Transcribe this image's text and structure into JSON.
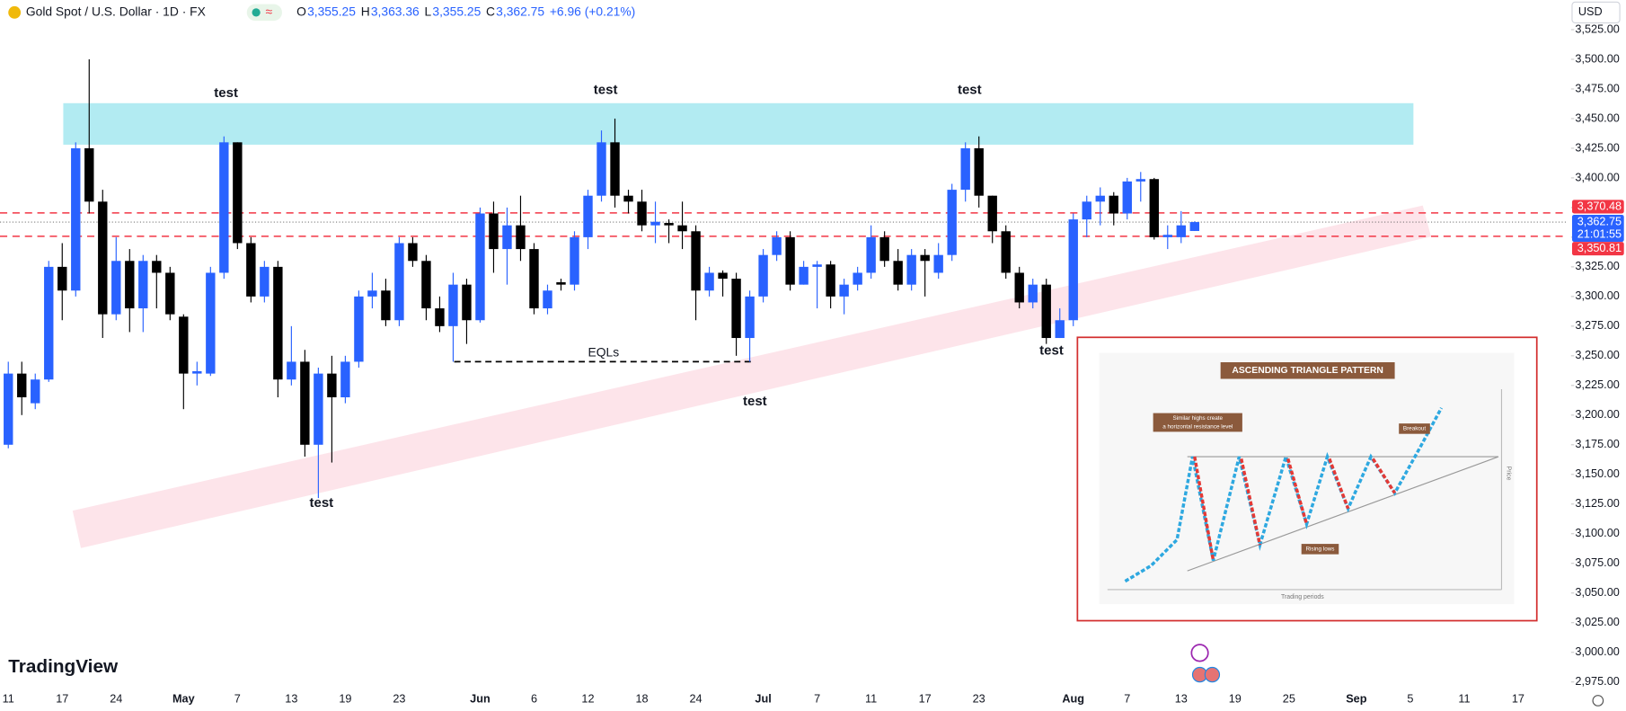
{
  "header": {
    "title": "Gold Spot / U.S. Dollar · 1D · FX",
    "ohlc": [
      {
        "letter": "O",
        "value": "3,355.25"
      },
      {
        "letter": "H",
        "value": "3,363.36"
      },
      {
        "letter": "L",
        "value": "3,355.25"
      },
      {
        "letter": "C",
        "value": "3,362.75"
      }
    ],
    "change": "+6.96 (+0.21%)"
  },
  "chart_data": {
    "type": "candlestick",
    "currency": "USD",
    "colors": {
      "up": "#2962ff",
      "down": "#000000"
    },
    "candles": {
      "open": [
        3175,
        3235,
        3210,
        3230,
        3325,
        3305,
        3425,
        3380,
        3285,
        3330,
        3290,
        3330,
        3320,
        3283,
        3235,
        3235,
        3320,
        3430,
        3345,
        3300,
        3325,
        3230,
        3245,
        3175,
        3235,
        3215,
        3245,
        3300,
        3305,
        3280,
        3345,
        3330,
        3290,
        3275,
        3310,
        3280,
        3370,
        3340,
        3360,
        3340,
        3290,
        3312,
        3310,
        3350,
        3385,
        3430,
        3385,
        3380,
        3360,
        3362,
        3360,
        3355,
        3305,
        3320,
        3315,
        3265,
        3300,
        3335,
        3350,
        3310,
        3325,
        3327,
        3300,
        3310,
        3320,
        3350,
        3330,
        3310,
        3335,
        3320,
        3335,
        3390,
        3425,
        3385,
        3355,
        3320,
        3295,
        3310,
        3265,
        3280,
        3365,
        3380,
        3385,
        3370,
        3397,
        3399,
        3350,
        3350,
        3355.25
      ],
      "high": [
        3245,
        3245,
        3235,
        3330,
        3345,
        3430,
        3500,
        3390,
        3350,
        3340,
        3335,
        3335,
        3325,
        3285,
        3245,
        3325,
        3435,
        3430,
        3350,
        3330,
        3330,
        3275,
        3255,
        3240,
        3250,
        3250,
        3305,
        3320,
        3315,
        3350,
        3350,
        3335,
        3300,
        3320,
        3315,
        3375,
        3380,
        3375,
        3385,
        3345,
        3310,
        3315,
        3355,
        3390,
        3440,
        3450,
        3390,
        3390,
        3380,
        3365,
        3380,
        3360,
        3325,
        3322,
        3320,
        3305,
        3340,
        3355,
        3355,
        3330,
        3330,
        3330,
        3315,
        3325,
        3360,
        3355,
        3340,
        3340,
        3340,
        3345,
        3395,
        3430,
        3435,
        3385,
        3360,
        3325,
        3315,
        3315,
        3290,
        3370,
        3385,
        3392,
        3388,
        3400,
        3405,
        3400,
        3360,
        3372,
        3363.36
      ],
      "low": [
        3172,
        3200,
        3205,
        3228,
        3280,
        3300,
        3370,
        3265,
        3280,
        3270,
        3270,
        3290,
        3280,
        3205,
        3225,
        3233,
        3315,
        3340,
        3295,
        3295,
        3215,
        3225,
        3165,
        3130,
        3160,
        3210,
        3240,
        3290,
        3275,
        3275,
        3325,
        3280,
        3270,
        3245,
        3260,
        3278,
        3320,
        3310,
        3330,
        3285,
        3285,
        3305,
        3305,
        3340,
        3380,
        3375,
        3370,
        3355,
        3345,
        3345,
        3340,
        3280,
        3300,
        3300,
        3250,
        3245,
        3295,
        3330,
        3305,
        3310,
        3290,
        3290,
        3285,
        3305,
        3315,
        3325,
        3305,
        3305,
        3300,
        3315,
        3330,
        3380,
        3375,
        3345,
        3315,
        3290,
        3290,
        3260,
        3265,
        3275,
        3350,
        3360,
        3360,
        3365,
        3380,
        3348,
        3340,
        3345,
        3355.25
      ],
      "close": [
        3235,
        3215,
        3230,
        3325,
        3305,
        3425,
        3380,
        3285,
        3330,
        3290,
        3330,
        3320,
        3285,
        3235,
        3237,
        3320,
        3430,
        3345,
        3300,
        3325,
        3230,
        3245,
        3175,
        3235,
        3215,
        3245,
        3300,
        3305,
        3280,
        3345,
        3330,
        3290,
        3275,
        3310,
        3280,
        3370,
        3340,
        3360,
        3340,
        3290,
        3305,
        3310,
        3350,
        3385,
        3430,
        3385,
        3380,
        3360,
        3363,
        3360,
        3355,
        3305,
        3320,
        3315,
        3265,
        3300,
        3335,
        3350,
        3310,
        3325,
        3327,
        3300,
        3310,
        3320,
        3350,
        3330,
        3310,
        3335,
        3330,
        3335,
        3390,
        3425,
        3385,
        3355,
        3320,
        3295,
        3310,
        3265,
        3280,
        3365,
        3380,
        3385,
        3370,
        3397,
        3399,
        3350,
        3352,
        3360,
        3362.75
      ]
    },
    "ylim": [
      2968,
      3550
    ],
    "yticks": [
      {
        "value": 3525,
        "label": "3,525.00"
      },
      {
        "value": 3500,
        "label": "3,500.00"
      },
      {
        "value": 3475,
        "label": "3,475.00"
      },
      {
        "value": 3450,
        "label": "3,450.00"
      },
      {
        "value": 3425,
        "label": "3,425.00"
      },
      {
        "value": 3400,
        "label": "3,400.00"
      },
      {
        "value": 3375,
        "label": "3,375.00"
      },
      {
        "value": 3350,
        "label": "3,350.00"
      },
      {
        "value": 3325,
        "label": "3,325.00"
      },
      {
        "value": 3300,
        "label": "3,300.00"
      },
      {
        "value": 3275,
        "label": "3,275.00"
      },
      {
        "value": 3250,
        "label": "3,250.00"
      },
      {
        "value": 3225,
        "label": "3,225.00"
      },
      {
        "value": 3200,
        "label": "3,200.00"
      },
      {
        "value": 3175,
        "label": "3,175.00"
      },
      {
        "value": 3150,
        "label": "3,150.00"
      },
      {
        "value": 3125,
        "label": "3,125.00"
      },
      {
        "value": 3100,
        "label": "3,100.00"
      },
      {
        "value": 3075,
        "label": "3,075.00"
      },
      {
        "value": 3050,
        "label": "3,050.00"
      },
      {
        "value": 3025,
        "label": "3,025.00"
      },
      {
        "value": 3000,
        "label": "3,000.00"
      },
      {
        "value": 2975,
        "label": "2,975.00"
      }
    ],
    "x_labels": [
      "11",
      "17",
      "24",
      "May",
      "7",
      "13",
      "19",
      "23",
      "Jun",
      "6",
      "12",
      "18",
      "24",
      "Jul",
      "7",
      "11",
      "17",
      "23",
      "Aug",
      "7",
      "13",
      "19",
      "25",
      "Sep",
      "5",
      "11",
      "17"
    ],
    "price_lines": [
      {
        "value": 3370.48,
        "label": "3,370.48",
        "color": "#f23645"
      },
      {
        "value": 3350.81,
        "label": "3,350.81",
        "color": "#f23645"
      }
    ],
    "last_price": {
      "value": 3362.75,
      "label": "3,362.75",
      "countdown": "21:01:55",
      "color": "#2962ff"
    },
    "zone": {
      "top": 3463,
      "bottom": 3428,
      "color": "#b2ebf2"
    },
    "eql_level": 3245,
    "annotations": [
      "test",
      "test",
      "test",
      "test",
      "test",
      "test",
      "EQLs"
    ],
    "watermark": "TradingView"
  },
  "inset": {
    "title": "ASCENDING TRIANGLE PATTERN",
    "resistance_note": "Similar highs create",
    "resistance_note_2": "a horizontal resistance level",
    "rising_note": "Rising lows",
    "breakout_note": "Breakout",
    "x_label": "Trading periods",
    "y_label": "Price"
  }
}
